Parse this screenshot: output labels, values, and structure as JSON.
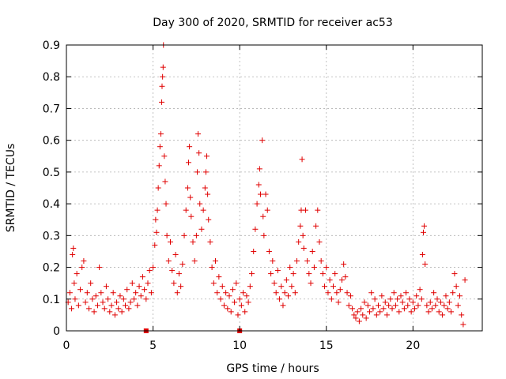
{
  "chart_data": {
    "type": "scatter",
    "title": "Day 300 of 2020, SRMTID for receiver ac53",
    "xlabel": "GPS time / hours",
    "ylabel": "SRMTID / TECUs",
    "xlim": [
      0,
      24
    ],
    "ylim": [
      0,
      0.9
    ],
    "xticks": [
      "0",
      "5",
      "10",
      "15",
      "20"
    ],
    "yticks": [
      "0",
      "0.1",
      "0.2",
      "0.3",
      "0.4",
      "0.5",
      "0.6",
      "0.7",
      "0.8",
      "0.9"
    ],
    "grid": true,
    "series_color": "#e00000",
    "markers_at_zero": [
      4.6,
      10.0
    ],
    "series": [
      {
        "name": "SRMTID",
        "points": [
          [
            0.1,
            0.09
          ],
          [
            0.2,
            0.12
          ],
          [
            0.3,
            0.07
          ],
          [
            0.35,
            0.24
          ],
          [
            0.4,
            0.26
          ],
          [
            0.45,
            0.15
          ],
          [
            0.5,
            0.1
          ],
          [
            0.6,
            0.18
          ],
          [
            0.7,
            0.08
          ],
          [
            0.8,
            0.13
          ],
          [
            0.9,
            0.2
          ],
          [
            1.0,
            0.22
          ],
          [
            1.1,
            0.09
          ],
          [
            1.2,
            0.12
          ],
          [
            1.3,
            0.07
          ],
          [
            1.4,
            0.15
          ],
          [
            1.5,
            0.1
          ],
          [
            1.6,
            0.06
          ],
          [
            1.7,
            0.11
          ],
          [
            1.8,
            0.08
          ],
          [
            1.9,
            0.2
          ],
          [
            2.0,
            0.12
          ],
          [
            2.1,
            0.09
          ],
          [
            2.2,
            0.07
          ],
          [
            2.3,
            0.14
          ],
          [
            2.4,
            0.1
          ],
          [
            2.5,
            0.06
          ],
          [
            2.6,
            0.08
          ],
          [
            2.7,
            0.12
          ],
          [
            2.8,
            0.05
          ],
          [
            2.9,
            0.09
          ],
          [
            3.0,
            0.07
          ],
          [
            3.1,
            0.11
          ],
          [
            3.2,
            0.06
          ],
          [
            3.3,
            0.1
          ],
          [
            3.4,
            0.08
          ],
          [
            3.5,
            0.13
          ],
          [
            3.6,
            0.07
          ],
          [
            3.7,
            0.09
          ],
          [
            3.8,
            0.15
          ],
          [
            3.9,
            0.1
          ],
          [
            4.0,
            0.12
          ],
          [
            4.1,
            0.08
          ],
          [
            4.2,
            0.14
          ],
          [
            4.3,
            0.11
          ],
          [
            4.4,
            0.17
          ],
          [
            4.5,
            0.13
          ],
          [
            4.6,
            0.1
          ],
          [
            4.7,
            0.15
          ],
          [
            4.8,
            0.19
          ],
          [
            4.9,
            0.12
          ],
          [
            5.0,
            0.2
          ],
          [
            5.1,
            0.27
          ],
          [
            5.15,
            0.35
          ],
          [
            5.2,
            0.31
          ],
          [
            5.25,
            0.38
          ],
          [
            5.3,
            0.45
          ],
          [
            5.35,
            0.52
          ],
          [
            5.4,
            0.58
          ],
          [
            5.45,
            0.62
          ],
          [
            5.5,
            0.72
          ],
          [
            5.52,
            0.77
          ],
          [
            5.55,
            0.8
          ],
          [
            5.58,
            0.83
          ],
          [
            5.6,
            0.9
          ],
          [
            5.65,
            0.55
          ],
          [
            5.7,
            0.47
          ],
          [
            5.75,
            0.4
          ],
          [
            5.8,
            0.3
          ],
          [
            5.9,
            0.22
          ],
          [
            6.0,
            0.28
          ],
          [
            6.1,
            0.19
          ],
          [
            6.2,
            0.15
          ],
          [
            6.3,
            0.24
          ],
          [
            6.4,
            0.12
          ],
          [
            6.5,
            0.18
          ],
          [
            6.6,
            0.14
          ],
          [
            6.7,
            0.21
          ],
          [
            6.8,
            0.3
          ],
          [
            6.9,
            0.38
          ],
          [
            7.0,
            0.45
          ],
          [
            7.05,
            0.53
          ],
          [
            7.1,
            0.58
          ],
          [
            7.15,
            0.42
          ],
          [
            7.2,
            0.36
          ],
          [
            7.3,
            0.28
          ],
          [
            7.4,
            0.22
          ],
          [
            7.5,
            0.3
          ],
          [
            7.55,
            0.5
          ],
          [
            7.6,
            0.62
          ],
          [
            7.65,
            0.56
          ],
          [
            7.7,
            0.4
          ],
          [
            7.8,
            0.32
          ],
          [
            7.9,
            0.38
          ],
          [
            8.0,
            0.45
          ],
          [
            8.05,
            0.5
          ],
          [
            8.1,
            0.55
          ],
          [
            8.15,
            0.43
          ],
          [
            8.2,
            0.35
          ],
          [
            8.3,
            0.28
          ],
          [
            8.4,
            0.2
          ],
          [
            8.5,
            0.15
          ],
          [
            8.6,
            0.22
          ],
          [
            8.7,
            0.12
          ],
          [
            8.8,
            0.17
          ],
          [
            8.9,
            0.1
          ],
          [
            9.0,
            0.14
          ],
          [
            9.1,
            0.08
          ],
          [
            9.2,
            0.12
          ],
          [
            9.3,
            0.07
          ],
          [
            9.4,
            0.11
          ],
          [
            9.5,
            0.06
          ],
          [
            9.6,
            0.13
          ],
          [
            9.7,
            0.09
          ],
          [
            9.8,
            0.15
          ],
          [
            9.9,
            0.05
          ],
          [
            10.0,
            0.1
          ],
          [
            10.1,
            0.08
          ],
          [
            10.2,
            0.12
          ],
          [
            10.3,
            0.06
          ],
          [
            10.4,
            0.11
          ],
          [
            10.5,
            0.09
          ],
          [
            10.6,
            0.14
          ],
          [
            10.7,
            0.18
          ],
          [
            10.8,
            0.25
          ],
          [
            10.9,
            0.32
          ],
          [
            11.0,
            0.4
          ],
          [
            11.1,
            0.46
          ],
          [
            11.15,
            0.51
          ],
          [
            11.2,
            0.43
          ],
          [
            11.3,
            0.6
          ],
          [
            11.35,
            0.36
          ],
          [
            11.4,
            0.3
          ],
          [
            11.5,
            0.43
          ],
          [
            11.6,
            0.38
          ],
          [
            11.7,
            0.25
          ],
          [
            11.8,
            0.18
          ],
          [
            11.9,
            0.22
          ],
          [
            12.0,
            0.15
          ],
          [
            12.1,
            0.12
          ],
          [
            12.2,
            0.19
          ],
          [
            12.3,
            0.1
          ],
          [
            12.4,
            0.14
          ],
          [
            12.5,
            0.08
          ],
          [
            12.6,
            0.12
          ],
          [
            12.7,
            0.16
          ],
          [
            12.8,
            0.11
          ],
          [
            12.9,
            0.2
          ],
          [
            13.0,
            0.14
          ],
          [
            13.1,
            0.18
          ],
          [
            13.2,
            0.12
          ],
          [
            13.3,
            0.22
          ],
          [
            13.4,
            0.28
          ],
          [
            13.5,
            0.33
          ],
          [
            13.55,
            0.38
          ],
          [
            13.6,
            0.54
          ],
          [
            13.65,
            0.3
          ],
          [
            13.7,
            0.26
          ],
          [
            13.8,
            0.38
          ],
          [
            13.9,
            0.22
          ],
          [
            14.0,
            0.18
          ],
          [
            14.1,
            0.15
          ],
          [
            14.2,
            0.25
          ],
          [
            14.3,
            0.2
          ],
          [
            14.4,
            0.33
          ],
          [
            14.5,
            0.38
          ],
          [
            14.6,
            0.28
          ],
          [
            14.7,
            0.22
          ],
          [
            14.8,
            0.18
          ],
          [
            14.9,
            0.14
          ],
          [
            15.0,
            0.2
          ],
          [
            15.1,
            0.12
          ],
          [
            15.2,
            0.16
          ],
          [
            15.3,
            0.1
          ],
          [
            15.4,
            0.14
          ],
          [
            15.5,
            0.18
          ],
          [
            15.6,
            0.12
          ],
          [
            15.7,
            0.09
          ],
          [
            15.8,
            0.13
          ],
          [
            15.9,
            0.16
          ],
          [
            16.0,
            0.21
          ],
          [
            16.1,
            0.17
          ],
          [
            16.2,
            0.12
          ],
          [
            16.3,
            0.08
          ],
          [
            16.4,
            0.11
          ],
          [
            16.5,
            0.07
          ],
          [
            16.6,
            0.05
          ],
          [
            16.7,
            0.04
          ],
          [
            16.8,
            0.06
          ],
          [
            16.9,
            0.03
          ],
          [
            17.0,
            0.07
          ],
          [
            17.1,
            0.05
          ],
          [
            17.2,
            0.09
          ],
          [
            17.3,
            0.04
          ],
          [
            17.4,
            0.08
          ],
          [
            17.5,
            0.06
          ],
          [
            17.6,
            0.12
          ],
          [
            17.7,
            0.07
          ],
          [
            17.8,
            0.1
          ],
          [
            17.9,
            0.05
          ],
          [
            18.0,
            0.08
          ],
          [
            18.1,
            0.06
          ],
          [
            18.2,
            0.11
          ],
          [
            18.3,
            0.07
          ],
          [
            18.4,
            0.09
          ],
          [
            18.5,
            0.05
          ],
          [
            18.6,
            0.08
          ],
          [
            18.7,
            0.1
          ],
          [
            18.8,
            0.07
          ],
          [
            18.9,
            0.12
          ],
          [
            19.0,
            0.08
          ],
          [
            19.1,
            0.1
          ],
          [
            19.2,
            0.06
          ],
          [
            19.3,
            0.11
          ],
          [
            19.4,
            0.09
          ],
          [
            19.5,
            0.07
          ],
          [
            19.6,
            0.12
          ],
          [
            19.7,
            0.08
          ],
          [
            19.8,
            0.1
          ],
          [
            19.9,
            0.06
          ],
          [
            20.0,
            0.09
          ],
          [
            20.1,
            0.07
          ],
          [
            20.2,
            0.11
          ],
          [
            20.3,
            0.08
          ],
          [
            20.4,
            0.13
          ],
          [
            20.5,
            0.1
          ],
          [
            20.55,
            0.24
          ],
          [
            20.6,
            0.31
          ],
          [
            20.65,
            0.33
          ],
          [
            20.7,
            0.21
          ],
          [
            20.8,
            0.08
          ],
          [
            20.9,
            0.06
          ],
          [
            21.0,
            0.09
          ],
          [
            21.1,
            0.07
          ],
          [
            21.2,
            0.12
          ],
          [
            21.3,
            0.08
          ],
          [
            21.4,
            0.1
          ],
          [
            21.5,
            0.06
          ],
          [
            21.6,
            0.09
          ],
          [
            21.7,
            0.05
          ],
          [
            21.8,
            0.08
          ],
          [
            21.9,
            0.11
          ],
          [
            22.0,
            0.07
          ],
          [
            22.1,
            0.09
          ],
          [
            22.2,
            0.06
          ],
          [
            22.3,
            0.12
          ],
          [
            22.4,
            0.18
          ],
          [
            22.5,
            0.14
          ],
          [
            22.6,
            0.08
          ],
          [
            22.7,
            0.11
          ],
          [
            22.8,
            0.05
          ],
          [
            22.9,
            0.02
          ],
          [
            23.0,
            0.16
          ]
        ]
      }
    ]
  }
}
